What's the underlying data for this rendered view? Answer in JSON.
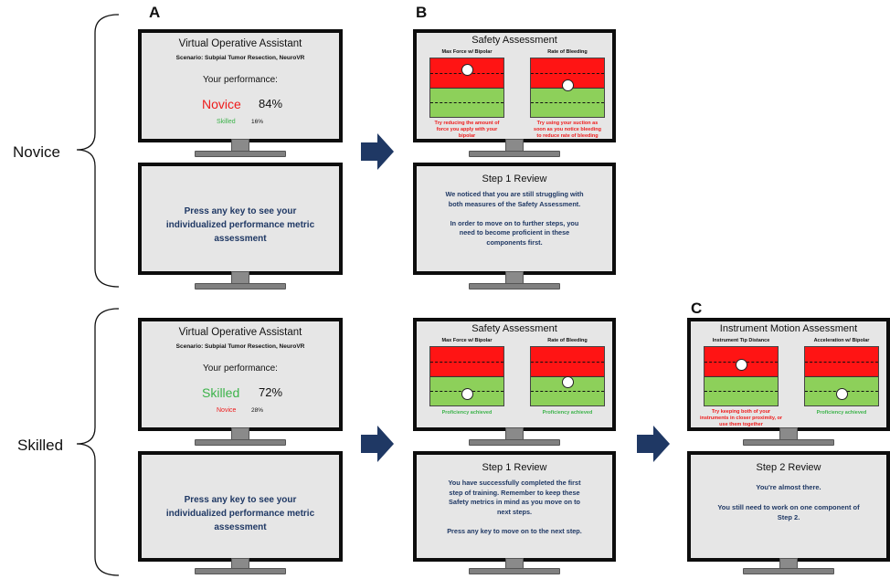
{
  "panels": {
    "a": "A",
    "b": "B",
    "c": "C"
  },
  "rows": {
    "novice": "Novice",
    "skilled": "Skilled"
  },
  "colors": {
    "navy": "#1f3864",
    "red": "#ee1c1c",
    "green": "#3cb34a",
    "arrow": "#1f3864"
  },
  "novice_perf": {
    "title": "Virtual Operative Assistant",
    "scenario": "Scenario: Subpial Tumor Resection, NeuroVR",
    "your_perf": "Your performance:",
    "main_label": "Novice",
    "main_pct": "84%",
    "sub_label": "Skilled",
    "sub_pct": "16%"
  },
  "skilled_perf": {
    "title": "Virtual Operative Assistant",
    "scenario": "Scenario: Subpial Tumor Resection, NeuroVR",
    "your_perf": "Your performance:",
    "main_label": "Skilled",
    "main_pct": "72%",
    "sub_label": "Novice",
    "sub_pct": "28%"
  },
  "press_key": {
    "line1": "Press any key to see your",
    "line2": "individualized performance metric",
    "line3": "assessment"
  },
  "safety_novice": {
    "title": "Safety Assessment",
    "g1_label": "Max Force w/ Bipolar",
    "g1_level": 0.82,
    "g1_fb": [
      "Try reducing the amount of",
      "force you apply with your",
      "bipolar"
    ],
    "g2_label": "Rate of Bleeding",
    "g2_level": 0.55,
    "g2_fb": [
      "Try using your suction as",
      "soon as you notice bleeding",
      "to reduce rate of bleeding"
    ]
  },
  "safety_skilled": {
    "title": "Safety Assessment",
    "g1_label": "Max Force w/ Bipolar",
    "g1_level": 0.2,
    "g1_fb": [
      "Proficiency achieved"
    ],
    "g2_label": "Rate of Bleeding",
    "g2_level": 0.4,
    "g2_fb": [
      "Proficiency achieved"
    ]
  },
  "instrument": {
    "title": "Instrument Motion Assessment",
    "g1_label": "Instrument Tip Distance",
    "g1_level": 0.7,
    "g1_fb": [
      "Try keeping both of your",
      "instruments in closer proximity, or",
      "use them together"
    ],
    "g2_label": "Acceleration w/ Bipolar",
    "g2_level": 0.2,
    "g2_fb": [
      "Proficiency achieved"
    ]
  },
  "step1_novice": {
    "title": "Step 1 Review",
    "lines": [
      "We noticed that you are still struggling with",
      "both measures of the Safety Assessment.",
      "",
      "In order to move on to further steps, you",
      "need to become proficient in these",
      "components first."
    ]
  },
  "step1_skilled": {
    "title": "Step 1 Review",
    "lines": [
      "You have successfully completed the first",
      "step of training. Remember to keep these",
      "Safety metrics in mind as you move on to",
      "next steps.",
      "",
      "Press any key to move on to the next step."
    ]
  },
  "step2": {
    "title": "Step 2 Review",
    "lines": [
      "You're almost there.",
      "",
      "You still need to work on one component of",
      "Step 2."
    ]
  }
}
